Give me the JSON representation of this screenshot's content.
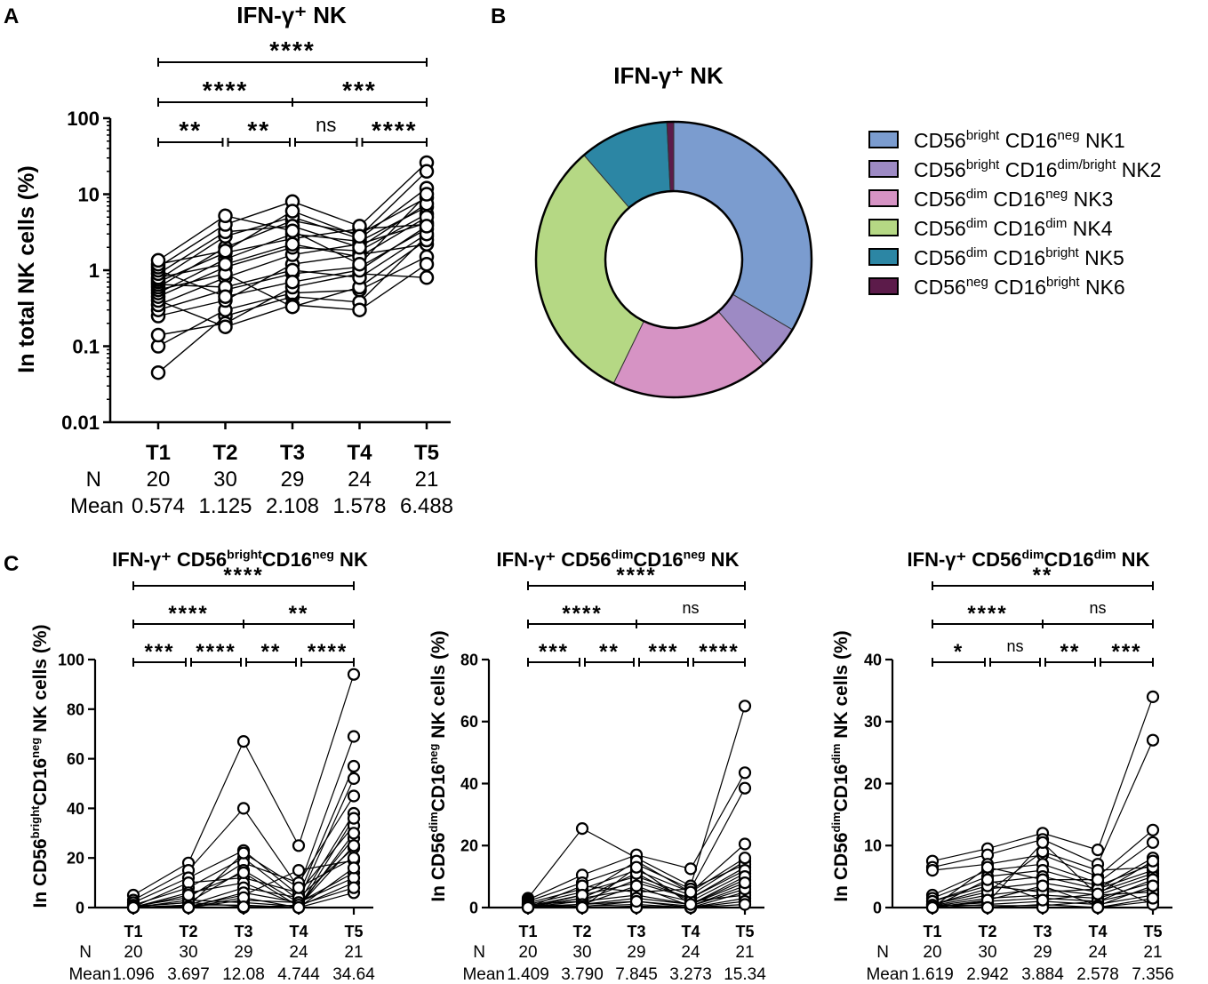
{
  "panel_labels": {
    "a": "A",
    "b": "B",
    "c": "C"
  },
  "table_labels": {
    "n": "N",
    "mean": "Mean"
  },
  "colors": {
    "ink": "#000000",
    "marker_fill": "#ffffff"
  },
  "chart_data": [
    {
      "id": "A",
      "type": "line",
      "scale": "log",
      "title": "IFN-γ⁺ NK",
      "xlabel": "",
      "ylabel": "In total NK cells (%)",
      "categories": [
        "T1",
        "T2",
        "T3",
        "T4",
        "T5"
      ],
      "ylim": [
        0.01,
        100
      ],
      "yticks": [
        0.01,
        0.1,
        1,
        10,
        100
      ],
      "ytick_labels": [
        "0.01",
        "0.1",
        "1",
        "10",
        "100"
      ],
      "n": [
        "20",
        "30",
        "29",
        "24",
        "21"
      ],
      "mean": [
        "0.574",
        "1.125",
        "2.108",
        "1.578",
        "6.488"
      ],
      "series_values": [
        [
          0.045,
          0.25,
          0.45,
          0.38,
          2.8
        ],
        [
          0.1,
          0.3,
          0.5,
          0.55,
          1.5
        ],
        [
          0.14,
          0.2,
          0.6,
          0.9,
          0.8
        ],
        [
          0.25,
          0.4,
          1.2,
          1.6,
          2.2
        ],
        [
          0.3,
          0.55,
          0.9,
          1.1,
          3.5
        ],
        [
          0.35,
          0.8,
          1.6,
          2.2,
          4.2
        ],
        [
          0.4,
          0.18,
          0.35,
          0.3,
          1.2
        ],
        [
          0.45,
          1.1,
          2.0,
          1.8,
          5.5
        ],
        [
          0.5,
          1.4,
          3.0,
          2.4,
          6.8
        ],
        [
          0.55,
          0.9,
          0.33,
          0.6,
          2.5
        ],
        [
          0.6,
          2.0,
          4.5,
          3.0,
          9.0
        ],
        [
          0.65,
          0.6,
          1.0,
          0.8,
          3.0
        ],
        [
          0.7,
          1.7,
          2.6,
          3.5,
          4.0
        ],
        [
          0.75,
          2.8,
          5.0,
          2.6,
          12.0
        ],
        [
          0.8,
          1.2,
          2.2,
          1.5,
          5.0
        ],
        [
          0.9,
          3.2,
          3.8,
          2.0,
          7.5
        ],
        [
          1.0,
          0.45,
          0.7,
          1.0,
          3.8
        ],
        [
          1.1,
          4.0,
          8.0,
          3.8,
          26.0
        ],
        [
          1.2,
          1.8,
          6.0,
          2.8,
          20.0
        ],
        [
          1.35,
          5.2,
          3.3,
          1.2,
          10.0
        ]
      ],
      "significance": [
        {
          "from": 0,
          "to": 1,
          "label": "**"
        },
        {
          "from": 1,
          "to": 2,
          "label": "**"
        },
        {
          "from": 2,
          "to": 3,
          "label": "ns"
        },
        {
          "from": 3,
          "to": 4,
          "label": "****"
        },
        {
          "from": 0,
          "to": 2,
          "label": "****"
        },
        {
          "from": 2,
          "to": 4,
          "label": "***"
        },
        {
          "from": 0,
          "to": 4,
          "label": "****"
        }
      ]
    },
    {
      "id": "B",
      "type": "pie",
      "title": "IFN-γ⁺ NK",
      "labels": [
        {
          "base1": "CD56",
          "sup1": "bright",
          "base2": " CD16",
          "sup2": "neg",
          "tail": " NK1"
        },
        {
          "base1": "CD56",
          "sup1": "bright",
          "base2": " CD16",
          "sup2": "dim/bright",
          "tail": " NK2"
        },
        {
          "base1": "CD56",
          "sup1": "dim",
          "base2": " CD16",
          "sup2": "neg",
          "tail": " NK3"
        },
        {
          "base1": "CD56",
          "sup1": "dim",
          "base2": " CD16",
          "sup2": "dim",
          "tail": " NK4"
        },
        {
          "base1": "CD56",
          "sup1": "dim",
          "base2": " CD16",
          "sup2": "bright",
          "tail": " NK5"
        },
        {
          "base1": "CD56",
          "sup1": "neg",
          "base2": " CD16",
          "sup2": "bright",
          "tail": " NK6"
        }
      ],
      "values": [
        33.5,
        5.2,
        18.5,
        31.5,
        10.5,
        0.8
      ],
      "colors": [
        "#7b9ccf",
        "#9d8ac4",
        "#d693c4",
        "#b5d884",
        "#2c86a4",
        "#5c1b4a"
      ]
    },
    {
      "id": "C1",
      "type": "line",
      "scale": "linear",
      "title_parts": {
        "pre": "IFN-γ⁺ CD56",
        "sup1": "bright",
        "mid": "CD16",
        "sup2": "neg",
        "post": " NK"
      },
      "ylabel_parts": {
        "pre": "In CD56",
        "sup1": "bright",
        "mid": "CD16",
        "sup2": "neg",
        "post": " NK cells (%)"
      },
      "categories": [
        "T1",
        "T2",
        "T3",
        "T4",
        "T5"
      ],
      "ylim": [
        0,
        100
      ],
      "yticks": [
        0,
        20,
        40,
        60,
        80,
        100
      ],
      "ytick_labels": [
        "0",
        "20",
        "40",
        "60",
        "80",
        "100"
      ],
      "n": [
        "20",
        "30",
        "29",
        "24",
        "21"
      ],
      "mean": [
        "1.096",
        "3.697",
        "12.08",
        "4.744",
        "34.64"
      ],
      "series_values": [
        [
          5,
          18,
          67,
          25,
          94
        ],
        [
          3,
          15,
          40,
          8,
          69
        ],
        [
          2,
          12,
          23,
          5,
          57
        ],
        [
          1,
          8,
          20,
          3,
          52
        ],
        [
          0.5,
          4,
          18,
          10,
          45
        ],
        [
          0.3,
          2,
          15,
          2,
          38
        ],
        [
          0.2,
          10,
          12,
          6,
          33
        ],
        [
          0.1,
          6,
          10,
          1,
          28
        ],
        [
          0,
          1,
          8,
          4,
          24
        ],
        [
          0,
          0.5,
          5,
          15,
          19
        ],
        [
          0,
          0,
          3,
          2,
          14
        ],
        [
          0,
          3,
          2,
          0.5,
          10
        ],
        [
          0,
          1,
          1,
          0,
          6
        ],
        [
          0.5,
          2,
          0.5,
          0,
          30
        ],
        [
          0.2,
          0.5,
          22,
          8,
          20
        ],
        [
          0,
          0,
          6,
          2,
          12
        ],
        [
          0.3,
          0,
          4,
          0,
          16
        ],
        [
          0.1,
          5,
          14,
          0.5,
          25
        ],
        [
          0,
          0.3,
          0,
          1,
          8
        ],
        [
          0,
          0,
          0.3,
          0,
          36
        ]
      ],
      "significance": [
        {
          "from": 0,
          "to": 1,
          "label": "***"
        },
        {
          "from": 1,
          "to": 2,
          "label": "****"
        },
        {
          "from": 2,
          "to": 3,
          "label": "**"
        },
        {
          "from": 3,
          "to": 4,
          "label": "****"
        },
        {
          "from": 0,
          "to": 2,
          "label": "****"
        },
        {
          "from": 2,
          "to": 4,
          "label": "**"
        },
        {
          "from": 0,
          "to": 4,
          "label": "****"
        }
      ]
    },
    {
      "id": "C2",
      "type": "line",
      "scale": "linear",
      "title_parts": {
        "pre": "IFN-γ⁺ CD56",
        "sup1": "dim",
        "mid": "CD16",
        "sup2": "neg",
        "post": " NK"
      },
      "ylabel_parts": {
        "pre": "In CD56",
        "sup1": "dim",
        "mid": "CD16",
        "sup2": "neg",
        "post": " NK cells (%)"
      },
      "categories": [
        "T1",
        "T2",
        "T3",
        "T4",
        "T5"
      ],
      "ylim": [
        0,
        80
      ],
      "yticks": [
        0,
        20,
        40,
        60,
        80
      ],
      "ytick_labels": [
        "0",
        "20",
        "40",
        "60",
        "80"
      ],
      "n": [
        "20",
        "30",
        "29",
        "24",
        "21"
      ],
      "mean": [
        "1.409",
        "3.790",
        "7.845",
        "3.273",
        "15.34"
      ],
      "series_values": [
        [
          3,
          25.5,
          16,
          7,
          65
        ],
        [
          2.5,
          10.5,
          17,
          12.5,
          43.5
        ],
        [
          2,
          8,
          14,
          6,
          38.5
        ],
        [
          1.5,
          6,
          12,
          5,
          20.5
        ],
        [
          1,
          5,
          10,
          4,
          15
        ],
        [
          0.5,
          4,
          8,
          3,
          13
        ],
        [
          0.3,
          3,
          6,
          2,
          11
        ],
        [
          0.2,
          2,
          4,
          1,
          9
        ],
        [
          0.1,
          1,
          2,
          0.5,
          7
        ],
        [
          0,
          0.5,
          1,
          0,
          5
        ],
        [
          0,
          0,
          0.5,
          0,
          3
        ],
        [
          0,
          7,
          5,
          6,
          14
        ],
        [
          1,
          2,
          9,
          3,
          12
        ],
        [
          0.5,
          1,
          3,
          1,
          10
        ],
        [
          0.2,
          3,
          11,
          2,
          4
        ],
        [
          0,
          4,
          15,
          5,
          16
        ],
        [
          0.1,
          0,
          0,
          0,
          2
        ],
        [
          0,
          1,
          7,
          0.5,
          6
        ],
        [
          0.4,
          0.3,
          2,
          0,
          1
        ],
        [
          0,
          0,
          13,
          1,
          8
        ]
      ],
      "significance": [
        {
          "from": 0,
          "to": 1,
          "label": "***"
        },
        {
          "from": 1,
          "to": 2,
          "label": "**"
        },
        {
          "from": 2,
          "to": 3,
          "label": "***"
        },
        {
          "from": 3,
          "to": 4,
          "label": "****"
        },
        {
          "from": 0,
          "to": 2,
          "label": "****"
        },
        {
          "from": 2,
          "to": 4,
          "label": "ns"
        },
        {
          "from": 0,
          "to": 4,
          "label": "****"
        }
      ]
    },
    {
      "id": "C3",
      "type": "line",
      "scale": "linear",
      "title_parts": {
        "pre": "IFN-γ⁺ CD56",
        "sup1": "dim",
        "mid": "CD16",
        "sup2": "dim",
        "post": " NK"
      },
      "ylabel_parts": {
        "pre": "In CD56",
        "sup1": "dim",
        "mid": "CD16",
        "sup2": "dim",
        "post": " NK cells (%)"
      },
      "categories": [
        "T1",
        "T2",
        "T3",
        "T4",
        "T5"
      ],
      "ylim": [
        0,
        40
      ],
      "yticks": [
        0,
        10,
        20,
        30,
        40
      ],
      "ytick_labels": [
        "0",
        "10",
        "20",
        "30",
        "40"
      ],
      "n": [
        "20",
        "30",
        "29",
        "24",
        "21"
      ],
      "mean": [
        "1.619",
        "2.942",
        "3.884",
        "2.578",
        "7.356"
      ],
      "series_values": [
        [
          7.5,
          9.5,
          12,
          9.3,
          34
        ],
        [
          6.5,
          8.5,
          11,
          7,
          27
        ],
        [
          6,
          7,
          8.5,
          5,
          12.5
        ],
        [
          2,
          6,
          7,
          4,
          10.5
        ],
        [
          1.5,
          5,
          6,
          3.5,
          7
        ],
        [
          1,
          4,
          5,
          3,
          6
        ],
        [
          0.5,
          3,
          4,
          2.5,
          5.5
        ],
        [
          0.3,
          2,
          3,
          2,
          5
        ],
        [
          0.2,
          1.5,
          2,
          1.5,
          4
        ],
        [
          0.1,
          1,
          1.5,
          1,
          3
        ],
        [
          0,
          0.5,
          1,
          0.5,
          2
        ],
        [
          0,
          0,
          0.5,
          0,
          1
        ],
        [
          0.5,
          2.5,
          9,
          6,
          6.5
        ],
        [
          1,
          3.5,
          2.5,
          3,
          8
        ],
        [
          0.2,
          0.8,
          10.5,
          2,
          2.5
        ],
        [
          0,
          6.5,
          4.5,
          4.5,
          0.5
        ],
        [
          0.4,
          0.3,
          0.3,
          1,
          4.5
        ],
        [
          0,
          1.2,
          3.5,
          0.3,
          3.5
        ],
        [
          0.1,
          0,
          0,
          0,
          1.5
        ],
        [
          0,
          4.5,
          1.2,
          2.2,
          7.5
        ]
      ],
      "significance": [
        {
          "from": 0,
          "to": 1,
          "label": "*"
        },
        {
          "from": 1,
          "to": 2,
          "label": "ns"
        },
        {
          "from": 2,
          "to": 3,
          "label": "**"
        },
        {
          "from": 3,
          "to": 4,
          "label": "***"
        },
        {
          "from": 0,
          "to": 2,
          "label": "****"
        },
        {
          "from": 2,
          "to": 4,
          "label": "ns"
        },
        {
          "from": 0,
          "to": 4,
          "label": "**"
        }
      ]
    }
  ]
}
